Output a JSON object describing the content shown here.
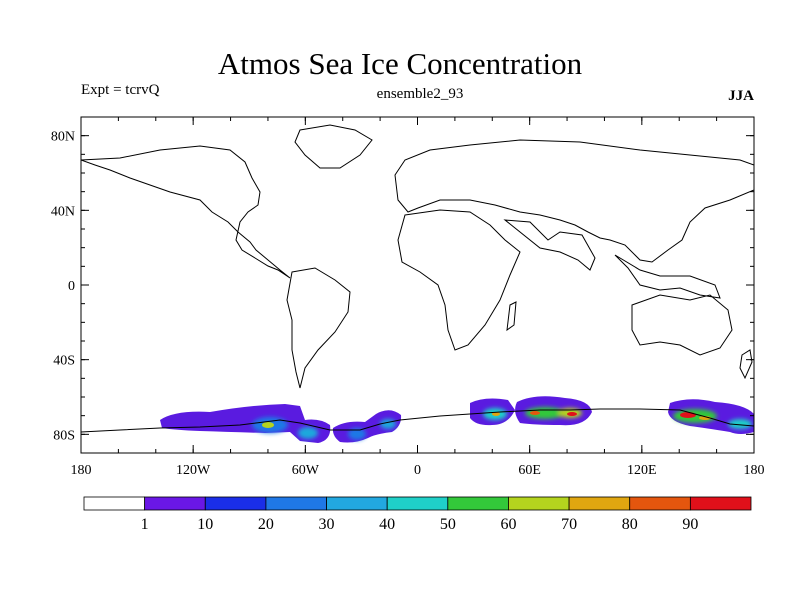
{
  "title": "Atmos Sea Ice Concentration",
  "expt_label": "Expt = tcrvQ",
  "center_label": "ensemble2_93",
  "season_label": "JJA",
  "lat_ticks": [
    {
      "value": 80,
      "label": "80N"
    },
    {
      "value": 40,
      "label": "40N"
    },
    {
      "value": 0,
      "label": "0"
    },
    {
      "value": -40,
      "label": "40S"
    },
    {
      "value": -80,
      "label": "80S"
    }
  ],
  "lon_ticks": [
    {
      "value": -180,
      "label": "180"
    },
    {
      "value": -120,
      "label": "120W"
    },
    {
      "value": -60,
      "label": "60W"
    },
    {
      "value": 0,
      "label": "0"
    },
    {
      "value": 60,
      "label": "60E"
    },
    {
      "value": 120,
      "label": "120E"
    },
    {
      "value": 180,
      "label": "180"
    }
  ],
  "colorbar": {
    "colors": [
      "#ffffff",
      "#6a17e6",
      "#1a2ee8",
      "#1f78e6",
      "#22a8e0",
      "#1fd0c8",
      "#33c83a",
      "#b4d41e",
      "#e0a610",
      "#e4560e",
      "#e0101a"
    ],
    "labels": [
      "1",
      "10",
      "20",
      "30",
      "40",
      "50",
      "60",
      "70",
      "80",
      "90"
    ]
  },
  "chart_data": {
    "type": "heatmap",
    "title": "Atmos Sea Ice Concentration",
    "xlim": [
      -180,
      180
    ],
    "ylim": [
      -90,
      90
    ],
    "contour_levels": [
      1,
      10,
      20,
      30,
      40,
      50,
      60,
      70,
      80,
      90
    ],
    "regions": [
      {
        "lon": -130,
        "lat": -75,
        "peak": 20
      },
      {
        "lon": -75,
        "lat": -75,
        "peak": 55
      },
      {
        "lon": -55,
        "lat": -78,
        "peak": 45
      },
      {
        "lon": -35,
        "lat": -79,
        "peak": 40
      },
      {
        "lon": -15,
        "lat": -75,
        "peak": 45
      },
      {
        "lon": 40,
        "lat": -70,
        "peak": 65
      },
      {
        "lon": 65,
        "lat": -70,
        "peak": 75
      },
      {
        "lon": 80,
        "lat": -71,
        "peak": 90
      },
      {
        "lon": 143,
        "lat": -71,
        "peak": 90
      },
      {
        "lon": 170,
        "lat": -74,
        "peak": 70
      }
    ]
  }
}
